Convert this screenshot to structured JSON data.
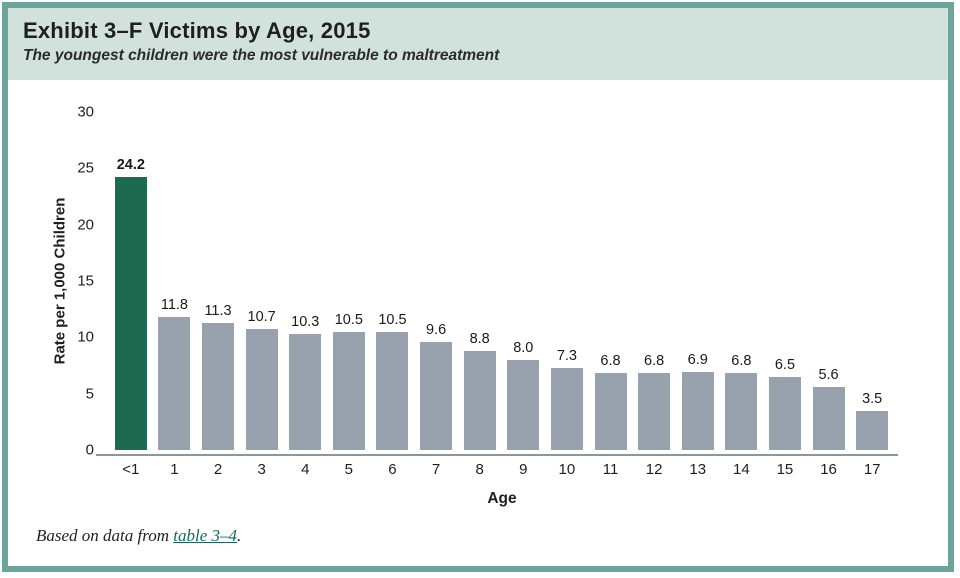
{
  "header": {
    "title": "Exhibit 3–F Victims by Age, 2015",
    "subtitle": "The youngest children were the most vulnerable to maltreatment"
  },
  "footer": {
    "prefix": "Based on data from ",
    "link_text": "table 3–4",
    "suffix": "."
  },
  "colors": {
    "frame_border": "#6BA59B",
    "header_bg": "#D1E1DB",
    "highlight_bar": "#1C6A4F",
    "bar": "#98A2AE",
    "axis_line": "#8B9995",
    "link": "#156B57"
  },
  "chart_data": {
    "type": "bar",
    "title": "Exhibit 3–F Victims by Age, 2015",
    "subtitle": "The youngest children were the most vulnerable to maltreatment",
    "categories": [
      "<1",
      "1",
      "2",
      "3",
      "4",
      "5",
      "6",
      "7",
      "8",
      "9",
      "10",
      "11",
      "12",
      "13",
      "14",
      "15",
      "16",
      "17"
    ],
    "values": [
      24.2,
      11.8,
      11.3,
      10.7,
      10.3,
      10.5,
      10.5,
      9.6,
      8.8,
      8.0,
      7.3,
      6.8,
      6.8,
      6.9,
      6.8,
      6.5,
      5.6,
      3.5
    ],
    "xlabel": "Age",
    "ylabel": "Rate per 1,000 Children",
    "ylim": [
      0,
      30
    ],
    "yticks": [
      0,
      5,
      10,
      15,
      20,
      25,
      30
    ],
    "grid": false,
    "legend_position": "none",
    "highlight_index": 0,
    "data_labels": true,
    "value_label_format": "one_decimal"
  }
}
